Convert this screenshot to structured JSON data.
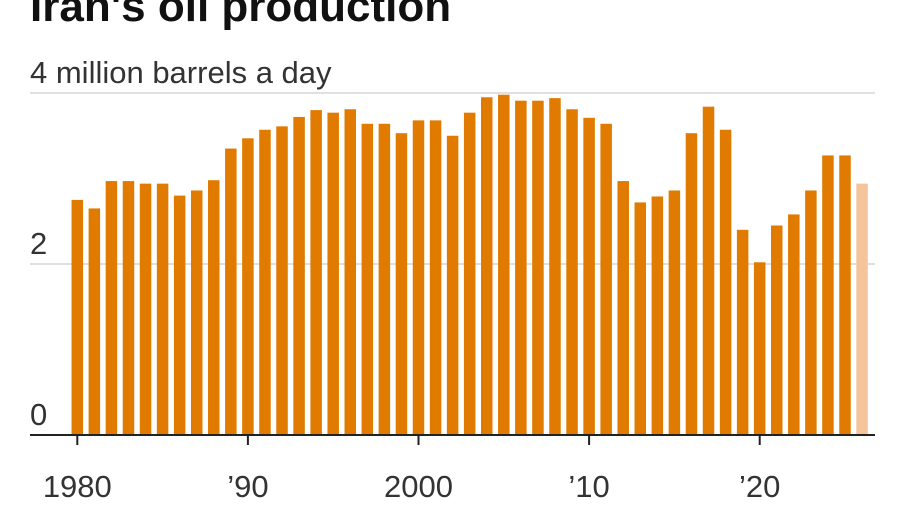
{
  "chart_data": {
    "type": "bar",
    "title": "Iran's oil production",
    "y_axis_top_label": "4 million barrels a day",
    "ylim": [
      0,
      4
    ],
    "y_ticks": [
      {
        "value": 0,
        "label": "0"
      },
      {
        "value": 2,
        "label": "2"
      },
      {
        "value": 4,
        "label": "4 million barrels a day"
      }
    ],
    "x_ticks": [
      {
        "year": 1980,
        "label": "1980"
      },
      {
        "year": 1990,
        "label": "’90"
      },
      {
        "year": 2000,
        "label": "2000"
      },
      {
        "year": 2010,
        "label": "’10"
      },
      {
        "year": 2020,
        "label": "’20"
      }
    ],
    "grid": true,
    "bar_color": "#e07b00",
    "highlight_color": "#f4c49a",
    "years": [
      1980,
      1981,
      1982,
      1983,
      1984,
      1985,
      1986,
      1987,
      1988,
      1989,
      1990,
      1991,
      1992,
      1993,
      1994,
      1995,
      1996,
      1997,
      1998,
      1999,
      2000,
      2001,
      2002,
      2003,
      2004,
      2005,
      2006,
      2007,
      2008,
      2009,
      2010,
      2011,
      2012,
      2013,
      2014,
      2015,
      2016,
      2017,
      2018,
      2019,
      2020,
      2021,
      2022,
      2023,
      2024,
      2025,
      2026
    ],
    "values": [
      2.75,
      2.65,
      2.97,
      2.97,
      2.94,
      2.94,
      2.8,
      2.86,
      2.98,
      3.35,
      3.47,
      3.57,
      3.61,
      3.72,
      3.8,
      3.77,
      3.81,
      3.64,
      3.64,
      3.53,
      3.68,
      3.68,
      3.5,
      3.77,
      3.95,
      3.98,
      3.91,
      3.91,
      3.94,
      3.81,
      3.71,
      3.64,
      2.97,
      2.72,
      2.79,
      2.86,
      3.53,
      3.84,
      3.57,
      2.4,
      2.02,
      2.45,
      2.58,
      2.86,
      3.27,
      3.27,
      2.94
    ],
    "highlighted_years": [
      2026
    ]
  }
}
